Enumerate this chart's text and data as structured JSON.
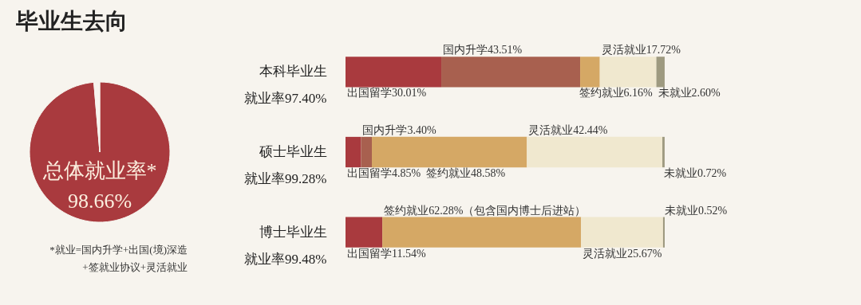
{
  "chart_data": [
    {
      "type": "pie",
      "title": "毕业生去向",
      "categories": [
        "总体就业率*",
        null
      ],
      "values": [
        98.66,
        1.34
      ],
      "value_labels": [
        "98.66%",
        null
      ],
      "colors": [
        "#a93a3e",
        "#f7f4ee"
      ],
      "annotations": [
        "*就业=国内升学+出国(境)深造",
        "+签就业协议+灵活就业"
      ]
    },
    {
      "type": "bar",
      "orientation": "horizontal",
      "stacked": true,
      "categories": [
        "本科毕业生",
        "硕士毕业生",
        "博士毕业生"
      ],
      "tick_labels": "y",
      "annotations": [
        "就业率97.40%",
        "就业率99.28%",
        "就业率99.48%"
      ],
      "series": [
        {
          "name": "出国留学",
          "color": "#a93a3e",
          "values": [
            30.01,
            4.85,
            11.54
          ],
          "value_labels": [
            "30.01%",
            "4.85%",
            "11.54%"
          ]
        },
        {
          "name": "国内升学",
          "color": "#a8604f",
          "values": [
            43.51,
            3.4,
            null
          ],
          "value_labels": [
            "43.51%",
            "3.40%",
            null
          ]
        },
        {
          "name": "签约就业",
          "color": "#d5a865",
          "values": [
            6.16,
            48.58,
            62.28
          ],
          "value_labels": [
            "6.16%",
            "48.58%",
            "62.28%（包含国内博士后进站）"
          ]
        },
        {
          "name": "灵活就业",
          "color": "#f0e8cf",
          "values": [
            17.72,
            42.44,
            25.67
          ],
          "value_labels": [
            "17.72%",
            "42.44%",
            "25.67%"
          ]
        },
        {
          "name": "未就业",
          "color": "#9e9a80",
          "values": [
            2.6,
            0.72,
            0.52
          ],
          "value_labels": [
            "2.60%",
            "0.72%",
            "0.52%"
          ]
        }
      ]
    }
  ]
}
